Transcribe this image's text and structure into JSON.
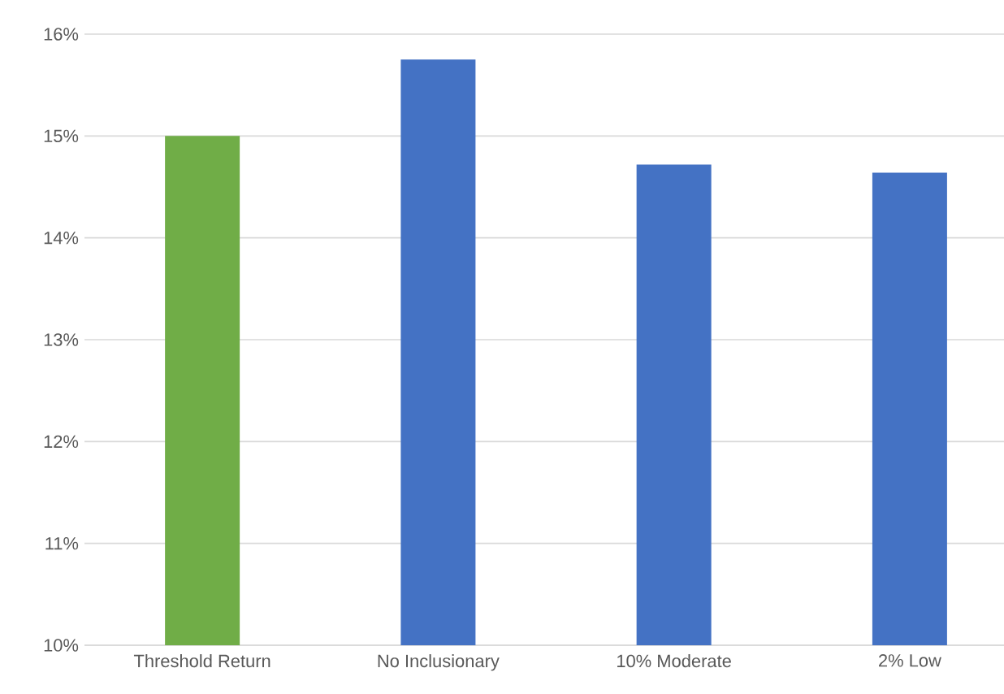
{
  "chart_data": {
    "type": "bar",
    "categories": [
      "Threshold Return",
      "No Inclusionary",
      "10% Moderate",
      "2% Low"
    ],
    "values": [
      15.0,
      15.75,
      14.72,
      14.64
    ],
    "colors": [
      "#70ad47",
      "#4472c4",
      "#4472c4",
      "#4472c4"
    ],
    "ylim": [
      10,
      16
    ],
    "yticks": [
      {
        "value": 10,
        "label": "10%"
      },
      {
        "value": 11,
        "label": "11%"
      },
      {
        "value": 12,
        "label": "12%"
      },
      {
        "value": 13,
        "label": "13%"
      },
      {
        "value": 14,
        "label": "14%"
      },
      {
        "value": 15,
        "label": "15%"
      },
      {
        "value": 16,
        "label": "16%"
      }
    ],
    "grid": "y"
  }
}
